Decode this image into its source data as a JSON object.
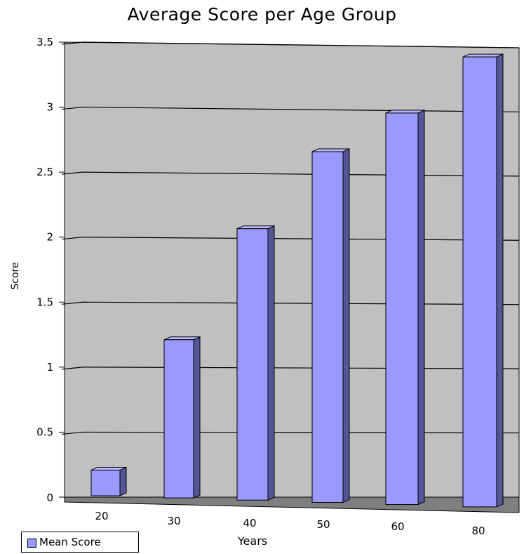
{
  "chart_data": {
    "type": "bar",
    "title": "Average Score per Age Group",
    "xlabel": "Years",
    "ylabel": "Score",
    "categories": [
      "20",
      "30",
      "40",
      "50",
      "60",
      "80"
    ],
    "series": [
      {
        "name": "Mean Score",
        "values": [
          0.2,
          1.23,
          2.1,
          2.7,
          3.0,
          3.43
        ]
      }
    ],
    "ylim": [
      0,
      3.5
    ],
    "yticks": [
      "0",
      "0.5",
      "1",
      "1.5",
      "2",
      "2.5",
      "3",
      "3.5"
    ],
    "grid": true,
    "legend_position": "bottom-left",
    "colors": {
      "bar_front": "#9999ff",
      "bar_side": "#555599",
      "bar_top": "#bbbbff",
      "wall": "#c0c0c0",
      "floor": "#7f7f7f"
    }
  }
}
